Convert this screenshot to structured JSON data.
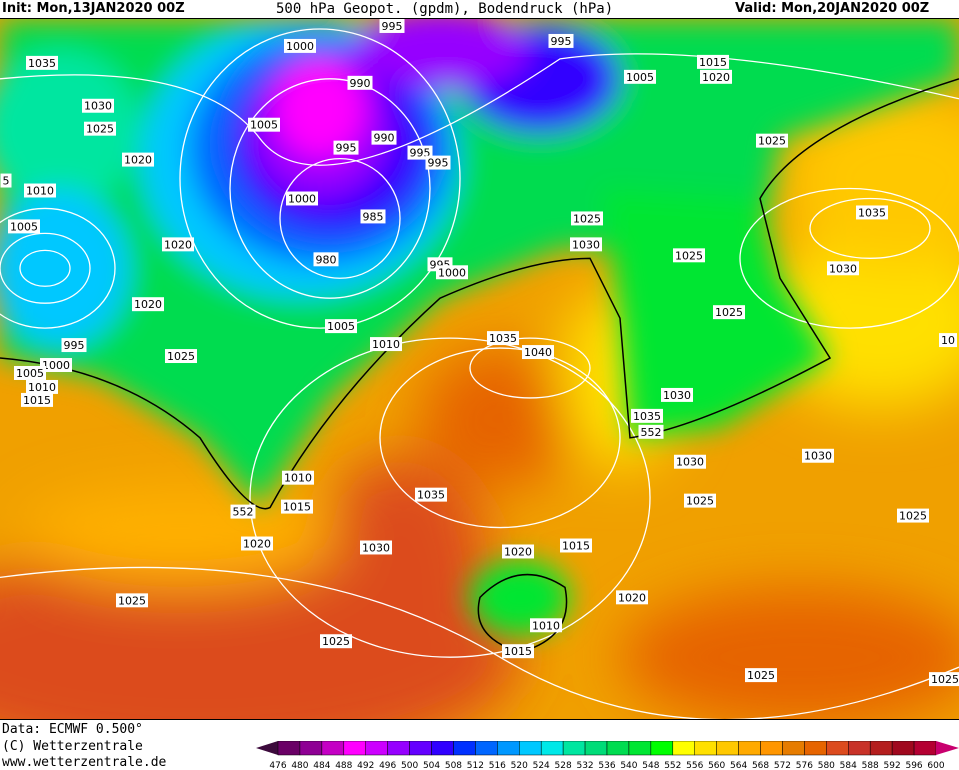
{
  "header": {
    "init": "Init: Mon,13JAN2020 00Z",
    "title": "500 hPa Geopot. (gpdm), Bodendruck (hPa)",
    "valid": "Valid: Mon,20JAN2020 00Z"
  },
  "footer": {
    "data": "Data: ECMWF  0.500°",
    "copyright": "(C) Wetterzentrale",
    "url": "www.wetterzentrale.de"
  },
  "legend": {
    "ticks": [
      476,
      480,
      484,
      488,
      492,
      496,
      500,
      504,
      508,
      512,
      516,
      520,
      524,
      528,
      532,
      536,
      540,
      548,
      552,
      556,
      560,
      564,
      568,
      572,
      576,
      580,
      584,
      588,
      592,
      596,
      600
    ],
    "colors": [
      "#6a0066",
      "#8e0094",
      "#c400c4",
      "#ff00ff",
      "#cc00ff",
      "#9600ff",
      "#6400ff",
      "#3000ff",
      "#0030ff",
      "#0066ff",
      "#0098ff",
      "#00c8ff",
      "#00e8e8",
      "#00e6a0",
      "#00dc78",
      "#00dc50",
      "#00e632",
      "#00ff00",
      "#ffff00",
      "#ffe000",
      "#ffc800",
      "#ffaa00",
      "#ff9600",
      "#e67c00",
      "#e66400",
      "#dc4b1e",
      "#c83228",
      "#b41e1e",
      "#a0081e",
      "#b40032"
    ],
    "under_color": "#3c0a3c",
    "over_color": "#c8006e"
  },
  "map": {
    "isobar_labels": [
      "1035",
      "1030",
      "1025",
      "1020",
      "1010",
      "1005",
      "1020",
      "1020",
      "995",
      "1000",
      "1005",
      "1010",
      "1015",
      "1025",
      "1000",
      "995",
      "990",
      "1005",
      "990",
      "995",
      "995",
      "995",
      "1000",
      "985",
      "980",
      "995",
      "1000",
      "995",
      "1005",
      "1015",
      "1020",
      "1025",
      "1035",
      "1030",
      "1025",
      "1030",
      "1025",
      "1025",
      "1005",
      "1010",
      "1035",
      "1040",
      "1030",
      "1035",
      "552",
      "1030",
      "1030",
      "1010",
      "1015",
      "552",
      "1035",
      "1025",
      "1025",
      "1020",
      "1030",
      "1020",
      "1015",
      "1020",
      "1025",
      "1010",
      "1025",
      "1015",
      "1025",
      "1025",
      "5",
      "10"
    ]
  }
}
